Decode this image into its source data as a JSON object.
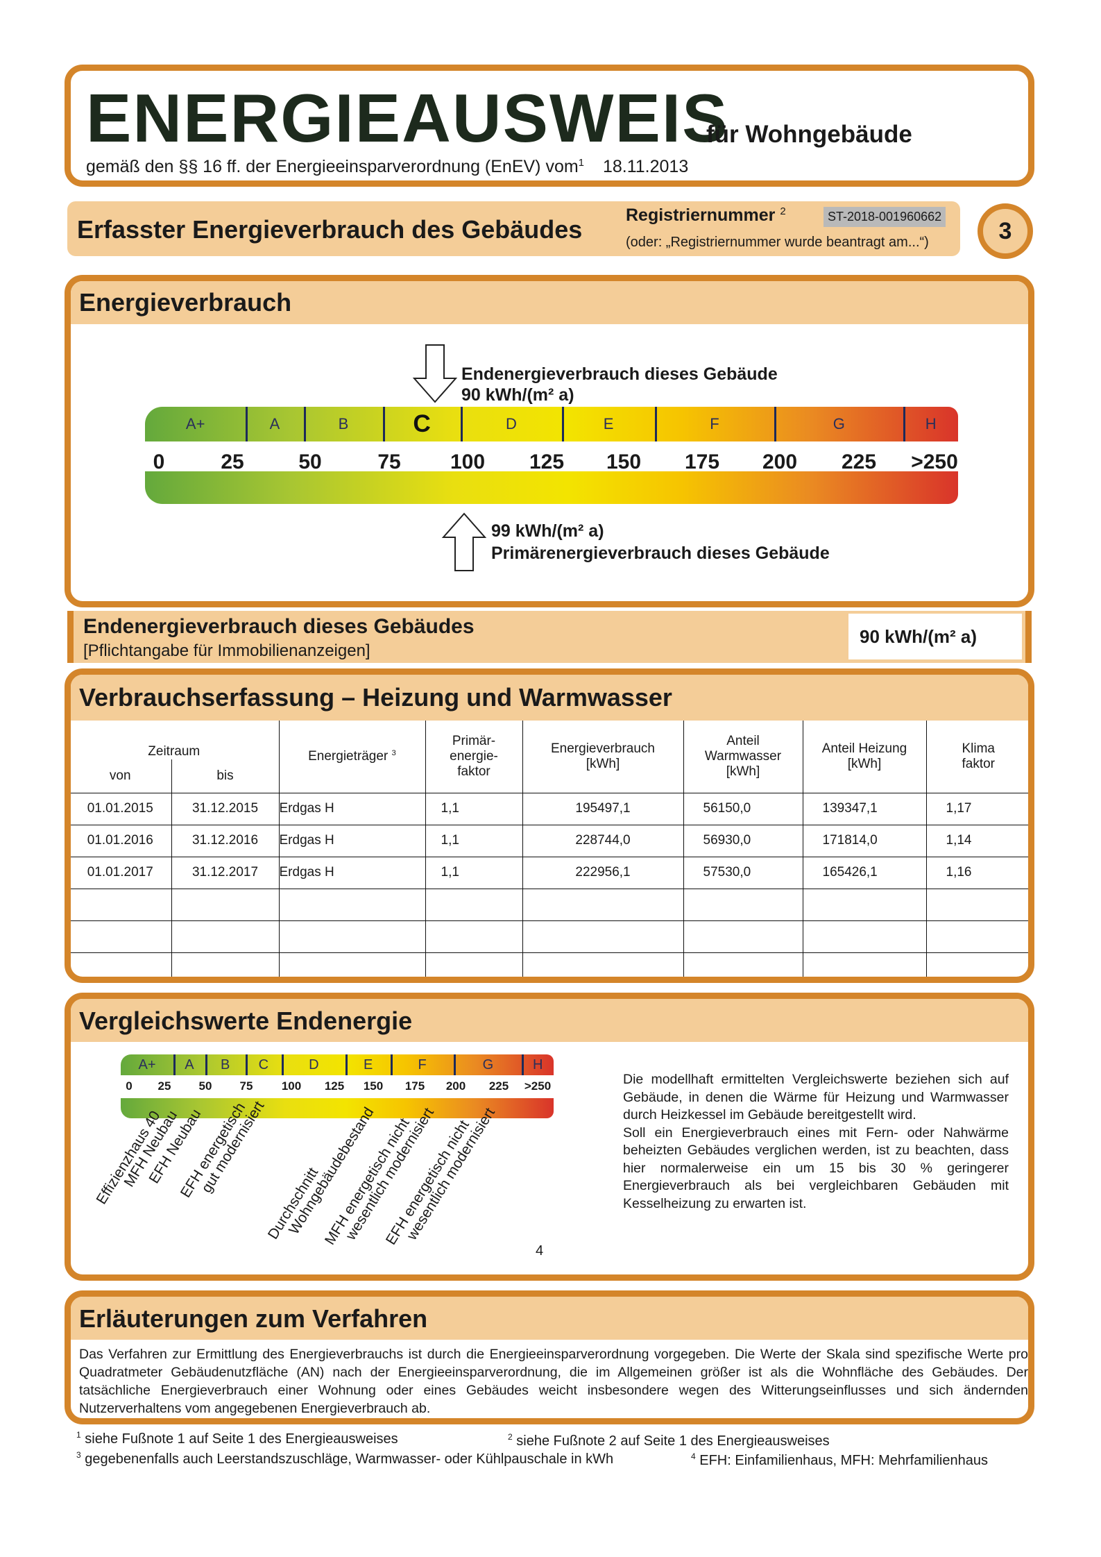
{
  "header": {
    "title": "ENERGIEAUSWEIS",
    "title_suffix": "für Wohngebäude",
    "subtitle": "gemäß den §§ 16 ff. der Energieeinsparverordnung (EnEV) vom",
    "subtitle_sup": "1",
    "date": "18.11.2013"
  },
  "section": {
    "title": "Erfasster Energieverbrauch des Gebäudes",
    "reg_label": "Registriernummer",
    "reg_sup": "2",
    "reg_value": "ST-2018-001960662",
    "reg_note": "(oder: „Registriernummer wurde beantragt am...“)",
    "page_number": "3"
  },
  "verbrauch": {
    "title": "Energieverbrauch",
    "end_label": "Endenergieverbrauch dieses Gebäude",
    "end_value": "90 kWh/(m² a)",
    "primary_value": "99 kWh/(m² a)",
    "primary_label": "Primärenergieverbrauch dieses Gebäude",
    "classes": [
      "A+",
      "A",
      "B",
      "C",
      "D",
      "E",
      "F",
      "G",
      "H"
    ],
    "active_class": "C",
    "ticks": [
      "0",
      "25",
      "50",
      "75",
      "100",
      "125",
      "150",
      "175",
      "200",
      "225",
      ">250"
    ],
    "end_energy": 90,
    "primary_energy": 99
  },
  "endenergie": {
    "title": "Endenergieverbrauch dieses Gebäudes",
    "note": "[Pflichtangabe für Immobilienanzeigen]",
    "value": "90 kWh/(m² a)"
  },
  "erfassung": {
    "title": "Verbrauchserfassung – Heizung und Warmwasser",
    "headers": {
      "zeitraum": "Zeitraum",
      "von": "von",
      "bis": "bis",
      "traeger": "Energieträger",
      "traeger_sup": "3",
      "primaer": "Primär-\nenergie-\nfaktor",
      "verbrauch": "Energieverbrauch\n[kWh]",
      "warmwasser": "Anteil\nWarmwasser\n[kWh]",
      "heizung": "Anteil Heizung\n[kWh]",
      "klima": "Klima\nfaktor"
    },
    "rows": [
      [
        "01.01.2015",
        "31.12.2015",
        "Erdgas H",
        "1,1",
        "195497,1",
        "56150,0",
        "139347,1",
        "1,17"
      ],
      [
        "01.01.2016",
        "31.12.2016",
        "Erdgas H",
        "1,1",
        "228744,0",
        "56930,0",
        "171814,0",
        "1,14"
      ],
      [
        "01.01.2017",
        "31.12.2017",
        "Erdgas H",
        "1,1",
        "222956,1",
        "57530,0",
        "165426,1",
        "1,16"
      ],
      [
        "",
        "",
        "",
        "",
        "",
        "",
        "",
        ""
      ],
      [
        "",
        "",
        "",
        "",
        "",
        "",
        "",
        ""
      ],
      [
        "",
        "",
        "",
        "",
        "",
        "",
        "",
        ""
      ]
    ]
  },
  "vergleich": {
    "title": "Vergleichswerte Endenergie",
    "labels": [
      [
        "Effizienzhaus 40"
      ],
      [
        "MFH Neubau"
      ],
      [
        "EFH Neubau"
      ],
      [
        "EFH energetisch",
        "gut modernisiert"
      ],
      [
        "Durchschnitt",
        "Wohngebäudebestand"
      ],
      [
        "MFH energetisch nicht",
        "wesentlich modernisiert"
      ],
      [
        "EFH energetisch nicht",
        "wesentlich modernisiert"
      ]
    ],
    "footnote_mark": "4",
    "text": "Die modellhaft ermittelten Vergleichswerte beziehen sich auf Gebäude, in denen die Wärme für Heizung und Warmwasser durch Heizkessel im Gebäude bereitgestellt wird.\nSoll ein Energieverbrauch eines mit Fern- oder Nahwärme beheizten Gebäudes verglichen werden, ist zu beachten, dass hier normalerweise ein um 15 bis 30 % geringerer Energieverbrauch als bei vergleichbaren Gebäuden mit Kesselheizung zu erwarten ist."
  },
  "erlaeuterung": {
    "title": "Erläuterungen zum Verfahren",
    "text": "Das Verfahren zur Ermittlung des Energieverbrauchs ist durch die Energieeinsparverordnung vorgegeben. Die Werte der Skala sind spezifische Werte pro Quadratmeter Gebäudenutzfläche (AN) nach der Energieeinsparverordnung, die im Allgemeinen größer ist als die Wohnfläche des Gebäudes. Der tatsächliche Energieverbrauch einer Wohnung oder eines Gebäudes weicht insbesondere wegen des Witterungseinflusses und sich ändernden Nutzerverhaltens vom angegebenen Energieverbrauch ab."
  },
  "footnotes": [
    {
      "n": "1",
      "t": "siehe Fußnote 1 auf Seite 1 des Energieausweises"
    },
    {
      "n": "2",
      "t": "siehe Fußnote 2 auf Seite 1 des Energieausweises"
    },
    {
      "n": "3",
      "t": "gegebenenfalls auch Leerstandszuschläge, Warmwasser- oder Kühlpauschale in kWh"
    },
    {
      "n": "4",
      "t": "EFH: Einfamilienhaus, MFH: Mehrfamilienhaus"
    }
  ],
  "colors": {
    "border": "#d4852a",
    "band": "#f4cd98",
    "reg_bg": "#b9b9b9"
  }
}
